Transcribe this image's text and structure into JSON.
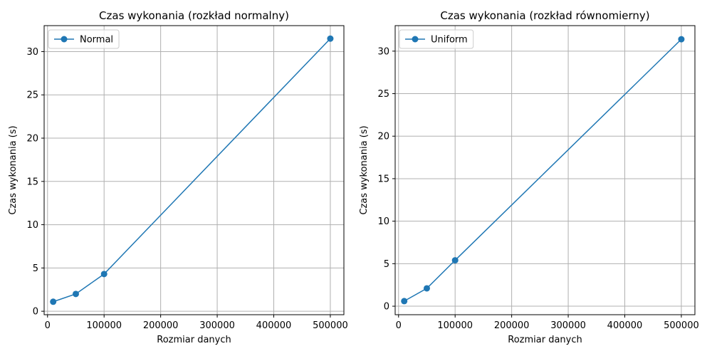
{
  "chart_data": [
    {
      "type": "line",
      "title": "Czas wykonania (rozkład normalny)",
      "xlabel": "Rozmiar danych",
      "ylabel": "Czas wykonania (s)",
      "xlim": [
        -6000,
        524000
      ],
      "ylim": [
        -0.4,
        33.0
      ],
      "xticks": [
        0,
        100000,
        200000,
        300000,
        400000,
        500000
      ],
      "yticks": [
        0,
        5,
        10,
        15,
        20,
        25,
        30
      ],
      "grid": true,
      "legend_position": "upper-left",
      "series": [
        {
          "name": "Normal",
          "color": "#1f77b4",
          "x": [
            10000,
            50000,
            100000,
            500000
          ],
          "y": [
            1.1,
            2.0,
            4.3,
            31.5
          ]
        }
      ]
    },
    {
      "type": "line",
      "title": "Czas wykonania (rozkład równomierny)",
      "xlabel": "Rozmiar danych",
      "ylabel": "Czas wykonania (s)",
      "xlim": [
        -6000,
        524000
      ],
      "ylim": [
        -1.0,
        33.0
      ],
      "xticks": [
        0,
        100000,
        200000,
        300000,
        400000,
        500000
      ],
      "yticks": [
        0,
        5,
        10,
        15,
        20,
        25,
        30
      ],
      "grid": true,
      "legend_position": "upper-left",
      "series": [
        {
          "name": "Uniform",
          "color": "#1f77b4",
          "x": [
            10000,
            50000,
            100000,
            500000
          ],
          "y": [
            0.6,
            2.1,
            5.4,
            31.4
          ]
        }
      ]
    }
  ]
}
